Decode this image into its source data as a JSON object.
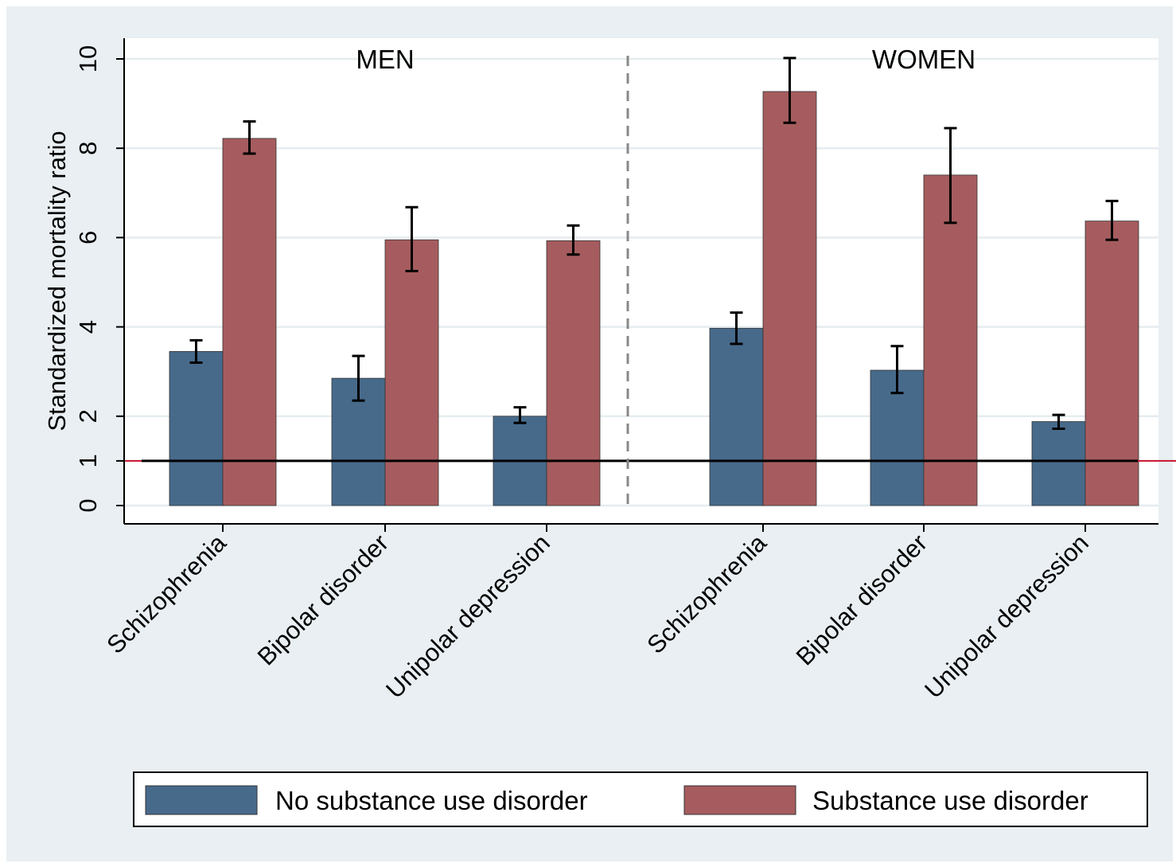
{
  "chart_data": {
    "type": "bar",
    "ylabel": "Standardized mortality ratio",
    "yticks": [
      0,
      1,
      2,
      4,
      6,
      8,
      10
    ],
    "ylim": [
      0,
      10
    ],
    "reference_line": 1,
    "legend_position": "bottom",
    "colors": {
      "outer_background": "#e9eff2",
      "plot_background": "#ffffff",
      "gridline": "#e6ecef",
      "no_sud": "#476a8b",
      "sud": "#a65c5e",
      "reference_line": "#000000",
      "reference_tick": "#c8102e",
      "divider": "#888888"
    },
    "groups": [
      {
        "label": "MEN",
        "categories": [
          "Schizophrenia",
          "Bipolar disorder",
          "Unipolar depression"
        ],
        "series": [
          {
            "name": "No substance use disorder",
            "values": [
              3.45,
              2.85,
              2.0
            ],
            "ci_low": [
              3.2,
              2.35,
              1.85
            ],
            "ci_high": [
              3.7,
              3.35,
              2.2
            ]
          },
          {
            "name": "Substance use disorder",
            "values": [
              8.22,
              5.95,
              5.93
            ],
            "ci_low": [
              7.88,
              5.25,
              5.62
            ],
            "ci_high": [
              8.6,
              6.68,
              6.27
            ]
          }
        ]
      },
      {
        "label": "WOMEN",
        "categories": [
          "Schizophrenia",
          "Bipolar disorder",
          "Unipolar depression"
        ],
        "series": [
          {
            "name": "No substance use disorder",
            "values": [
              3.97,
              3.03,
              1.88
            ],
            "ci_low": [
              3.62,
              2.52,
              1.72
            ],
            "ci_high": [
              4.32,
              3.57,
              2.03
            ]
          },
          {
            "name": "Substance use disorder",
            "values": [
              9.27,
              7.4,
              6.37
            ],
            "ci_low": [
              8.57,
              6.33,
              5.95
            ],
            "ci_high": [
              10.02,
              8.45,
              6.82
            ]
          }
        ]
      }
    ],
    "legend": [
      "No substance use disorder",
      "Substance use disorder"
    ]
  }
}
